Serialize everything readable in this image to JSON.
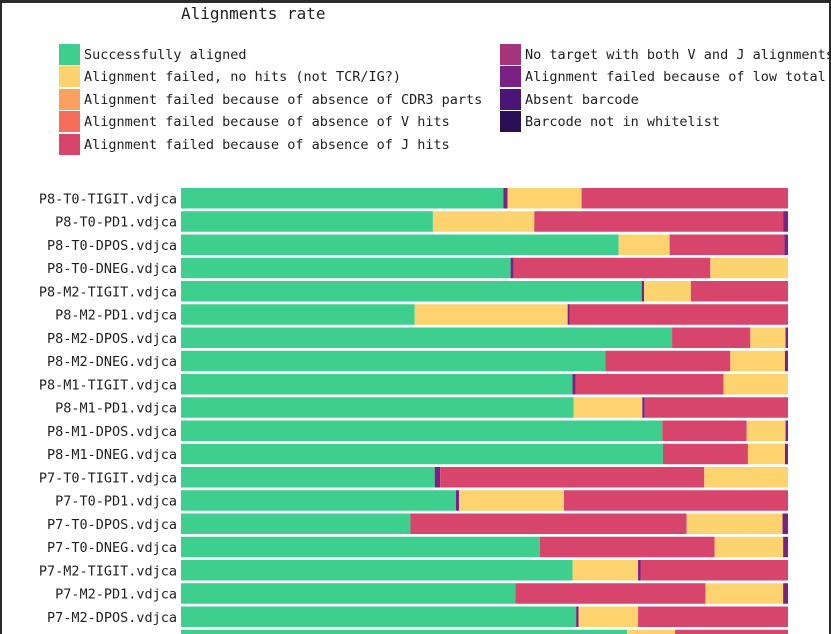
{
  "chart_data": {
    "type": "bar",
    "orientation": "horizontal",
    "stacked": true,
    "title": "Alignments rate",
    "xlim": [
      0,
      100
    ],
    "legend_position": "top",
    "legend": [
      {
        "label": "Successfully aligned",
        "color": "#3ecf8e"
      },
      {
        "label": "Alignment failed, no hits (not TCR/IG?)",
        "color": "#fdd36f"
      },
      {
        "label": "Alignment failed because of absence of CDR3 parts",
        "color": "#fca060"
      },
      {
        "label": "Alignment failed because of absence of V hits",
        "color": "#f56e5c"
      },
      {
        "label": "Alignment failed because of absence of J hits",
        "color": "#d8456c"
      },
      {
        "label": "No target with both V and J alignments",
        "color": "#a5357b"
      },
      {
        "label": "Alignment failed because of low total sc",
        "color": "#7a2283"
      },
      {
        "label": "Absent barcode",
        "color": "#4a1576"
      },
      {
        "label": "Barcode not in whitelist",
        "color": "#2b0f54"
      }
    ],
    "segment_colors": [
      "#3ecf8e",
      "#fdd36f",
      "#d8456c",
      "#7a2283"
    ],
    "categories": [
      "P8-T0-TIGIT.vdjca",
      "P8-T0-PD1.vdjca",
      "P8-T0-DPOS.vdjca",
      "P8-T0-DNEG.vdjca",
      "P8-M2-TIGIT.vdjca",
      "P8-M2-PD1.vdjca",
      "P8-M2-DPOS.vdjca",
      "P8-M2-DNEG.vdjca",
      "P8-M1-TIGIT.vdjca",
      "P8-M1-PD1.vdjca",
      "P8-M1-DPOS.vdjca",
      "P8-M1-DNEG.vdjca",
      "P7-T0-TIGIT.vdjca",
      "P7-T0-PD1.vdjca",
      "P7-T0-DPOS.vdjca",
      "P7-T0-DNEG.vdjca",
      "P7-M2-TIGIT.vdjca",
      "P7-M2-PD1.vdjca",
      "P7-M2-DPOS.vdjca"
    ],
    "rows": [
      [
        [
          0,
          53.1
        ],
        [
          3,
          0.7
        ],
        [
          1,
          12.2
        ],
        [
          2,
          34.0
        ]
      ],
      [
        [
          0,
          41.5
        ],
        [
          1,
          16.7
        ],
        [
          2,
          41.0
        ],
        [
          3,
          0.8
        ]
      ],
      [
        [
          0,
          72.1
        ],
        [
          1,
          8.4
        ],
        [
          2,
          18.9
        ],
        [
          3,
          0.6
        ]
      ],
      [
        [
          0,
          54.3
        ],
        [
          3,
          0.5
        ],
        [
          2,
          32.4
        ],
        [
          1,
          12.8
        ]
      ],
      [
        [
          0,
          75.9
        ],
        [
          3,
          0.4
        ],
        [
          1,
          7.7
        ],
        [
          2,
          16.0
        ]
      ],
      [
        [
          0,
          38.5
        ],
        [
          1,
          25.2
        ],
        [
          3,
          0.3
        ],
        [
          2,
          36.0
        ]
      ],
      [
        [
          0,
          80.9
        ],
        [
          2,
          12.9
        ],
        [
          1,
          5.8
        ],
        [
          3,
          0.4
        ]
      ],
      [
        [
          0,
          69.9
        ],
        [
          2,
          20.6
        ],
        [
          1,
          9.0
        ],
        [
          3,
          0.5
        ]
      ],
      [
        [
          0,
          64.5
        ],
        [
          3,
          0.5
        ],
        [
          2,
          24.4
        ],
        [
          1,
          10.6
        ]
      ],
      [
        [
          0,
          64.7
        ],
        [
          1,
          11.3
        ],
        [
          3,
          0.4
        ],
        [
          2,
          23.6
        ]
      ],
      [
        [
          0,
          79.3
        ],
        [
          2,
          13.9
        ],
        [
          1,
          6.4
        ],
        [
          3,
          0.4
        ]
      ],
      [
        [
          0,
          79.4
        ],
        [
          2,
          14.0
        ],
        [
          1,
          6.1
        ],
        [
          3,
          0.5
        ]
      ],
      [
        [
          0,
          41.8
        ],
        [
          3,
          0.9
        ],
        [
          2,
          43.5
        ],
        [
          1,
          13.8
        ]
      ],
      [
        [
          0,
          45.3
        ],
        [
          3,
          0.5
        ],
        [
          1,
          17.3
        ],
        [
          2,
          36.9
        ]
      ],
      [
        [
          0,
          37.8
        ],
        [
          2,
          45.5
        ],
        [
          1,
          15.8
        ],
        [
          3,
          0.9
        ]
      ],
      [
        [
          0,
          59.1
        ],
        [
          2,
          28.8
        ],
        [
          1,
          11.3
        ],
        [
          3,
          0.8
        ]
      ],
      [
        [
          0,
          64.5
        ],
        [
          1,
          10.8
        ],
        [
          3,
          0.4
        ],
        [
          2,
          24.3
        ]
      ],
      [
        [
          0,
          55.1
        ],
        [
          2,
          31.3
        ],
        [
          1,
          12.8
        ],
        [
          3,
          0.8
        ]
      ],
      [
        [
          0,
          65.1
        ],
        [
          3,
          0.4
        ],
        [
          1,
          9.8
        ],
        [
          2,
          24.7
        ]
      ]
    ],
    "partial_last_row": [
      [
        0,
        73.5
      ],
      [
        1,
        7.9
      ],
      [
        2,
        18.6
      ]
    ]
  }
}
